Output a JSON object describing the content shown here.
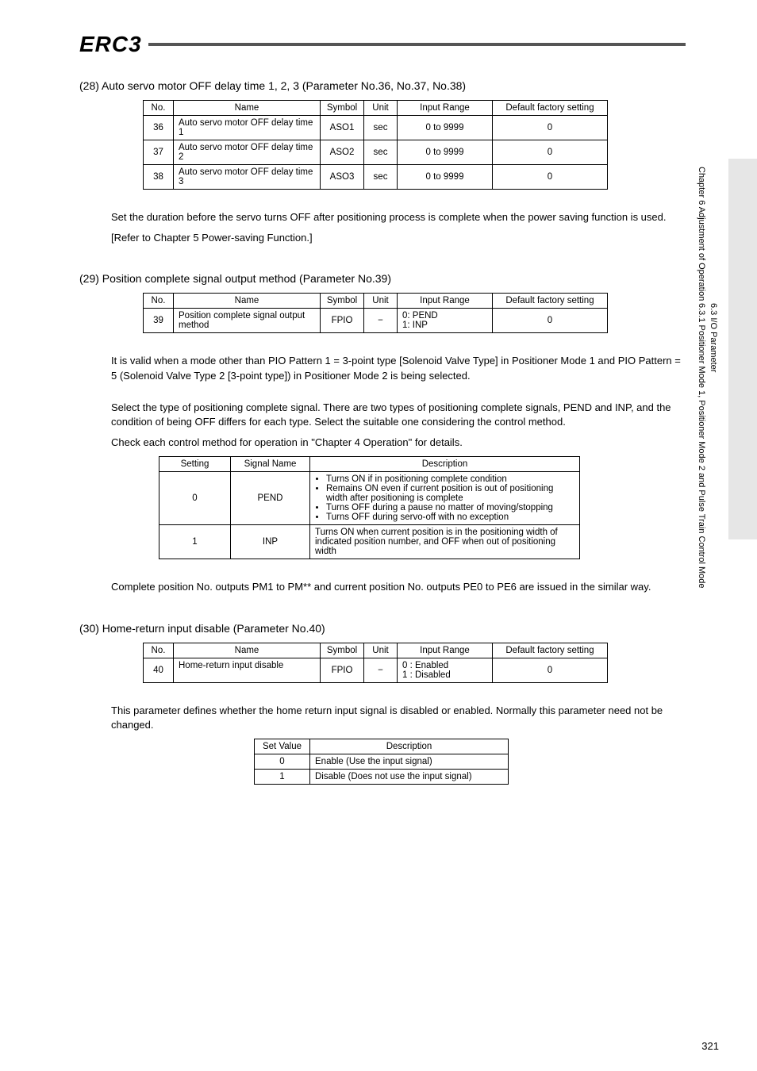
{
  "logo": "ERC3",
  "section28": {
    "title": "(28)  Auto servo motor OFF delay time 1, 2, 3 (Parameter No.36, No.37, No.38)",
    "table": {
      "columns": [
        "No.",
        "Name",
        "Symbol",
        "Unit",
        "Input Range",
        "Default factory setting"
      ],
      "col_widths": [
        "38px",
        "185px",
        "55px",
        "42px",
        "120px",
        "145px"
      ],
      "rows": [
        [
          "36",
          "Auto servo motor OFF delay time 1",
          "ASO1",
          "sec",
          "0 to 9999",
          "0"
        ],
        [
          "37",
          "Auto servo motor OFF delay time 2",
          "ASO2",
          "sec",
          "0 to 9999",
          "0"
        ],
        [
          "38",
          "Auto servo motor OFF delay time 3",
          "ASO3",
          "sec",
          "0 to 9999",
          "0"
        ]
      ]
    },
    "para1": "Set the duration before the servo turns OFF after positioning process is complete when the power saving function is used.",
    "para2": "[Refer to Chapter 5 Power-saving Function.]"
  },
  "section29": {
    "title": "(29)  Position complete signal output method (Parameter No.39)",
    "table": {
      "columns": [
        "No.",
        "Name",
        "Symbol",
        "Unit",
        "Input Range",
        "Default factory setting"
      ],
      "col_widths": [
        "38px",
        "185px",
        "55px",
        "42px",
        "120px",
        "145px"
      ],
      "rows": [
        [
          "39",
          "Position complete signal output method",
          "FPIO",
          "−",
          "0: PEND\n1: INP",
          "0"
        ]
      ]
    },
    "para1": "It is valid when a mode other than PIO Pattern 1 = 3-point type [Solenoid Valve Type] in Positioner Mode 1 and PIO Pattern = 5 (Solenoid Valve Type 2 [3-point type]) in Positioner Mode 2 is being selected.",
    "para2": "Select the type of positioning complete signal. There are two types of positioning complete signals, PEND and INP, and the condition of being OFF differs for each type. Select the suitable one considering the control method.",
    "para3": "Check each control method for operation in \"Chapter 4 Operation\" for details.",
    "desc_table": {
      "columns": [
        "Setting",
        "Signal Name",
        "Description"
      ],
      "col_widths": [
        "90px",
        "100px",
        "340px"
      ],
      "rows": [
        {
          "setting": "0",
          "signal": "PEND",
          "bullets": [
            "Turns ON if in positioning complete condition",
            "Remains ON even if current position is out of positioning width after positioning is complete",
            "Turns OFF during a pause no matter of moving/stopping",
            "Turns OFF during servo-off with no exception"
          ]
        },
        {
          "setting": "1",
          "signal": "INP",
          "text": "Turns ON when current position is in the positioning width of indicated position number, and OFF when out of positioning width"
        }
      ]
    },
    "para4": "Complete position No. outputs PM1 to PM** and current position No. outputs PE0 to PE6 are issued in the similar way."
  },
  "section30": {
    "title": "(30)  Home-return input disable (Parameter No.40)",
    "table": {
      "columns": [
        "No.",
        "Name",
        "Symbol",
        "Unit",
        "Input Range",
        "Default factory setting"
      ],
      "col_widths": [
        "38px",
        "185px",
        "55px",
        "42px",
        "120px",
        "145px"
      ],
      "rows": [
        [
          "40",
          "Home-return input disable",
          "FPIO",
          "−",
          "0 : Enabled\n1 : Disabled",
          "0"
        ]
      ]
    },
    "para1": "This parameter defines whether the home return input signal is disabled or enabled. Normally this parameter need not be changed.",
    "small_table": {
      "columns": [
        "Set Value",
        "Description"
      ],
      "col_widths": [
        "70px",
        "250px"
      ],
      "rows": [
        [
          "0",
          "Enable (Use the input signal)"
        ],
        [
          "1",
          "Disable (Does not use the input signal)"
        ]
      ]
    }
  },
  "side": {
    "chapter": "Chapter 6 Adjustment of Operation",
    "sec_a": "6.3 I/O Parameter",
    "sec_b": "6.3.1 Positioner Mode 1, Positioner Mode 2 and Pulse Train Control Mode"
  },
  "page_number": "321"
}
